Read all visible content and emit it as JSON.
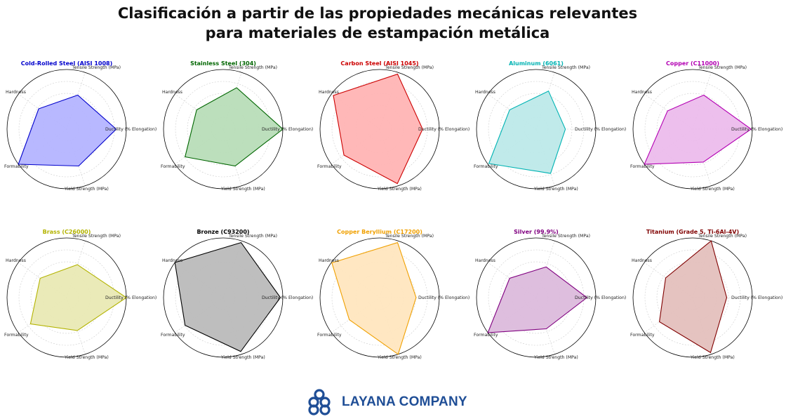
{
  "title": {
    "line1": "Clasificación a partir de las propiedades mecánicas relevantes",
    "line2": "para materiales de estampación metálica"
  },
  "brand": {
    "name": "LAYANA COMPANY",
    "icon": "layana-logo-icon",
    "color": "#1f4e96"
  },
  "chart_data": [
    {
      "type": "radar",
      "title": "Cold-Rolled Steel (AISI 1008)",
      "color": "#0000cc",
      "fill": "#b4b4ff",
      "axes": [
        "Tensile Strength (MPa)",
        "Ductility (% Elongation)",
        "Yield Strength (MPa)",
        "Formability",
        "Hardness"
      ],
      "values": [
        0.6,
        0.83,
        0.65,
        1.0,
        0.58
      ],
      "range": [
        0,
        1
      ],
      "grid": true
    },
    {
      "type": "radar",
      "title": "Stainless Steel (304)",
      "color": "#006600",
      "fill": "#b8ddb8",
      "axes": [
        "Tensile Strength (MPa)",
        "Ductility (% Elongation)",
        "Yield Strength (MPa)",
        "Formability",
        "Hardness"
      ],
      "values": [
        0.73,
        1.0,
        0.65,
        0.79,
        0.55
      ],
      "range": [
        0,
        1
      ],
      "grid": true
    },
    {
      "type": "radar",
      "title": "Carbon Steel (AISI 1045)",
      "color": "#cc0000",
      "fill": "#ffb4b4",
      "axes": [
        "Tensile Strength (MPa)",
        "Ductility (% Elongation)",
        "Yield Strength (MPa)",
        "Formability",
        "Hardness"
      ],
      "values": [
        0.97,
        0.72,
        0.96,
        0.74,
        0.96
      ],
      "range": [
        0,
        1
      ],
      "grid": true
    },
    {
      "type": "radar",
      "title": "Aluminum (6061)",
      "color": "#00b3b3",
      "fill": "#bde9e9",
      "axes": [
        "Tensile Strength (MPa)",
        "Ductility (% Elongation)",
        "Yield Strength (MPa)",
        "Formability",
        "Hardness"
      ],
      "values": [
        0.67,
        0.49,
        0.78,
        0.98,
        0.55
      ],
      "range": [
        0,
        1
      ],
      "grid": true
    },
    {
      "type": "radar",
      "title": "Copper (C11000)",
      "color": "#b300b3",
      "fill": "#ecbcec",
      "axes": [
        "Tensile Strength (MPa)",
        "Ductility (% Elongation)",
        "Yield Strength (MPa)",
        "Formability",
        "Hardness"
      ],
      "values": [
        0.6,
        0.98,
        0.58,
        1.0,
        0.52
      ],
      "range": [
        0,
        1
      ],
      "grid": true
    },
    {
      "type": "radar",
      "title": "Brass (C26000)",
      "color": "#b3b300",
      "fill": "#e9e9b4",
      "axes": [
        "Tensile Strength (MPa)",
        "Ductility (% Elongation)",
        "Yield Strength (MPa)",
        "Formability",
        "Hardness"
      ],
      "values": [
        0.58,
        1.0,
        0.58,
        0.75,
        0.55
      ],
      "range": [
        0,
        1
      ],
      "grid": true
    },
    {
      "type": "radar",
      "title": "Bronze (C93200)",
      "color": "#000000",
      "fill": "#bbbbbb",
      "axes": [
        "Tensile Strength (MPa)",
        "Ductility (% Elongation)",
        "Yield Strength (MPa)",
        "Formability",
        "Hardness"
      ],
      "values": [
        0.97,
        0.96,
        0.95,
        0.79,
        1.0
      ],
      "range": [
        0,
        1
      ],
      "grid": true
    },
    {
      "type": "radar",
      "title": "Copper Beryllium (C17200)",
      "color": "#f0a000",
      "fill": "#ffe6bf",
      "axes": [
        "Tensile Strength (MPa)",
        "Ductility (% Elongation)",
        "Yield Strength (MPa)",
        "Formability",
        "Hardness"
      ],
      "values": [
        0.97,
        0.61,
        1.0,
        0.63,
        0.99
      ],
      "range": [
        0,
        1
      ],
      "grid": true
    },
    {
      "type": "radar",
      "title": "Silver (99.9%)",
      "color": "#800080",
      "fill": "#dcbadc",
      "axes": [
        "Tensile Strength (MPa)",
        "Ductility (% Elongation)",
        "Yield Strength (MPa)",
        "Formability",
        "Hardness"
      ],
      "values": [
        0.54,
        0.85,
        0.55,
        1.0,
        0.55
      ],
      "range": [
        0,
        1
      ],
      "grid": true
    },
    {
      "type": "radar",
      "title": "Titanium (Grade 5, Ti-6Al-4V)",
      "color": "#800000",
      "fill": "#e4c0bd",
      "axes": [
        "Tensile Strength (MPa)",
        "Ductility (% Elongation)",
        "Yield Strength (MPa)",
        "Formability",
        "Hardness"
      ],
      "values": [
        1.0,
        0.57,
        0.97,
        0.69,
        0.56
      ],
      "range": [
        0,
        1
      ],
      "grid": true
    }
  ]
}
